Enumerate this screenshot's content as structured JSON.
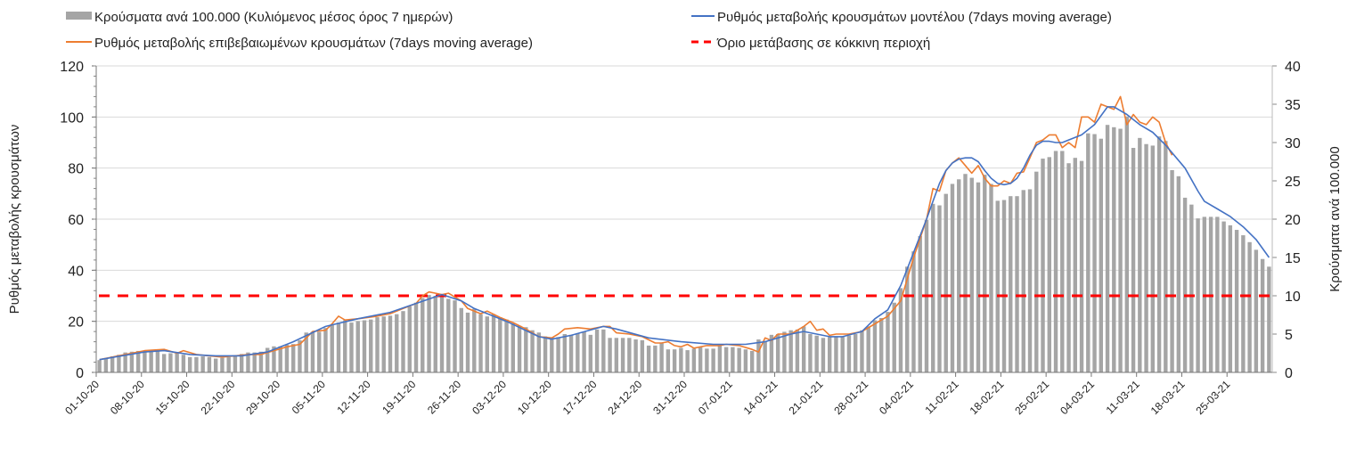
{
  "chart_data": {
    "type": "bar+line",
    "title": "",
    "ylabel_left": "Ρυθμός μεταβολής κρουσμάτων",
    "ylabel_right": "Κρούσματα ανά 100.000",
    "ylim_left": [
      0,
      120
    ],
    "ylim_right": [
      0,
      40
    ],
    "yticks_left": [
      0,
      20,
      40,
      60,
      80,
      100,
      120
    ],
    "yticks_right": [
      0,
      5,
      10,
      15,
      20,
      25,
      30,
      35,
      40
    ],
    "grid": true,
    "legend_position": "top",
    "x_tick_labels": [
      "01-10-20",
      "08-10-20",
      "15-10-20",
      "22-10-20",
      "29-10-20",
      "05-11-20",
      "12-11-20",
      "19-11-20",
      "26-11-20",
      "03-12-20",
      "10-12-20",
      "17-12-20",
      "24-12-20",
      "31-12-20",
      "07-01-21",
      "14-01-21",
      "21-01-21",
      "28-01-21",
      "04-02-21",
      "11-02-21",
      "18-02-21",
      "25-02-21",
      "04-03-21",
      "11-03-21",
      "18-03-21",
      "25-03-21"
    ],
    "x_tick_step_days": 7,
    "series": [
      {
        "name": "Κρούσματα ανά 100.000 (Κυλιόμενος μέσος όρος 7 ημερών)",
        "kind": "bar",
        "axis": "right",
        "color": "#a5a5a5",
        "values": [
          1.6,
          1.8,
          2.1,
          2.3,
          2.6,
          2.7,
          2.8,
          2.8,
          2.9,
          2.8,
          2.4,
          2.5,
          2.6,
          2.3,
          2.0,
          2.0,
          2.1,
          2.0,
          1.8,
          1.9,
          2.0,
          2.2,
          2.4,
          2.6,
          2.6,
          2.7,
          3.2,
          3.4,
          3.4,
          3.6,
          3.7,
          4.2,
          5.2,
          5.3,
          5.3,
          5.8,
          6.2,
          6.5,
          6.8,
          6.5,
          6.7,
          6.8,
          6.9,
          7.2,
          7.3,
          7.4,
          7.6,
          8.0,
          8.6,
          9.1,
          9.7,
          10.1,
          10.0,
          10.1,
          9.6,
          9.4,
          8.4,
          7.8,
          8.3,
          7.6,
          7.3,
          7.6,
          7.2,
          6.9,
          6.4,
          6.1,
          5.9,
          5.5,
          5.2,
          4.7,
          4.6,
          4.6,
          5.0,
          4.9,
          5.1,
          5.3,
          4.9,
          5.6,
          5.6,
          4.5,
          4.5,
          4.5,
          4.5,
          4.3,
          4.2,
          3.5,
          3.5,
          3.8,
          3.0,
          3.0,
          3.2,
          2.9,
          3.1,
          3.3,
          3.1,
          3.1,
          3.6,
          3.3,
          3.3,
          3.2,
          3.0,
          2.8,
          4.3,
          4.1,
          4.9,
          5.0,
          5.3,
          5.5,
          5.6,
          6.0,
          5.0,
          4.8,
          4.5,
          4.6,
          4.6,
          4.7,
          4.8,
          5.0,
          5.5,
          6.0,
          6.8,
          7.1,
          7.9,
          9.1,
          11.0,
          13.8,
          15.8,
          17.8,
          19.9,
          22.0,
          21.8,
          23.3,
          24.6,
          25.2,
          25.9,
          25.4,
          24.8,
          25.8,
          24.6,
          22.4,
          22.5,
          23.0,
          23.0,
          23.8,
          23.9,
          26.2,
          27.9,
          28.1,
          28.9,
          28.9,
          27.3,
          28.0,
          27.6,
          31.2,
          31.1,
          30.5,
          32.3,
          32.0,
          31.8,
          33.4,
          29.3,
          30.6,
          29.8,
          29.6,
          30.8,
          30.2,
          26.4,
          25.6,
          22.8,
          21.9,
          20.1,
          20.3,
          20.3,
          20.3,
          19.7,
          19.2,
          18.6,
          17.9,
          17.0,
          16.0,
          14.8,
          13.8
        ]
      },
      {
        "name": "Ρυθμός μεταβολής κρουσμάτων μοντέλου (7days moving average)",
        "kind": "line",
        "axis": "left",
        "color": "#4472c4",
        "points_day_value": [
          [
            0,
            5
          ],
          [
            7,
            8
          ],
          [
            10,
            8.5
          ],
          [
            14,
            7
          ],
          [
            18,
            6.5
          ],
          [
            22,
            6.5
          ],
          [
            26,
            8
          ],
          [
            30,
            12
          ],
          [
            35,
            18
          ],
          [
            40,
            21
          ],
          [
            45,
            23.5
          ],
          [
            49,
            27
          ],
          [
            53,
            30.5
          ],
          [
            56,
            28
          ],
          [
            58,
            25
          ],
          [
            63,
            20
          ],
          [
            68,
            14
          ],
          [
            70,
            13
          ],
          [
            73,
            14.5
          ],
          [
            78,
            18
          ],
          [
            80,
            17
          ],
          [
            85,
            13.5
          ],
          [
            90,
            12
          ],
          [
            95,
            11
          ],
          [
            100,
            11
          ],
          [
            103,
            12
          ],
          [
            107,
            15
          ],
          [
            109,
            16
          ],
          [
            113,
            14
          ],
          [
            115,
            14
          ],
          [
            118,
            16
          ],
          [
            120,
            21
          ],
          [
            122,
            24.5
          ],
          [
            124,
            34
          ],
          [
            126,
            47
          ],
          [
            128,
            60
          ],
          [
            129,
            67
          ],
          [
            130,
            74
          ],
          [
            131,
            79
          ],
          [
            132,
            82
          ],
          [
            133,
            83.5
          ],
          [
            134,
            84
          ],
          [
            135,
            84
          ],
          [
            136,
            82.5
          ],
          [
            137,
            79
          ],
          [
            138,
            76
          ],
          [
            139,
            74
          ],
          [
            140,
            73.5
          ],
          [
            141,
            74
          ],
          [
            142,
            76
          ],
          [
            143,
            80
          ],
          [
            144,
            85
          ],
          [
            145,
            89
          ],
          [
            146,
            90.5
          ],
          [
            147,
            90.5
          ],
          [
            148,
            90
          ],
          [
            149,
            90
          ],
          [
            150,
            91
          ],
          [
            152,
            93
          ],
          [
            154,
            97
          ],
          [
            156,
            104
          ],
          [
            157,
            104
          ],
          [
            159,
            101
          ],
          [
            161,
            97
          ],
          [
            163,
            94
          ],
          [
            165,
            89
          ],
          [
            168,
            80
          ],
          [
            170,
            71
          ],
          [
            171,
            67
          ],
          [
            173,
            64
          ],
          [
            175,
            61
          ],
          [
            177,
            57
          ],
          [
            179,
            52
          ],
          [
            181,
            45
          ]
        ]
      },
      {
        "name": "Ρυθμός μεταβολής επιβεβαιωμένων κρουσμάτων (7days moving average)",
        "kind": "line",
        "axis": "left",
        "color": "#ed7d31",
        "points_day_value": [
          [
            0,
            5
          ],
          [
            4,
            7
          ],
          [
            7,
            8.5
          ],
          [
            10,
            9
          ],
          [
            12,
            7.5
          ],
          [
            13,
            8.5
          ],
          [
            15,
            7
          ],
          [
            17,
            6.5
          ],
          [
            19,
            6
          ],
          [
            21,
            6.5
          ],
          [
            23,
            7
          ],
          [
            25,
            7
          ],
          [
            27,
            8.5
          ],
          [
            29,
            10
          ],
          [
            31,
            11
          ],
          [
            33,
            16
          ],
          [
            35,
            16.5
          ],
          [
            36,
            19
          ],
          [
            37,
            22
          ],
          [
            38,
            20.5
          ],
          [
            40,
            21
          ],
          [
            43,
            22
          ],
          [
            45,
            23
          ],
          [
            47,
            25
          ],
          [
            49,
            27
          ],
          [
            50,
            30
          ],
          [
            51,
            31.5
          ],
          [
            52,
            31
          ],
          [
            53,
            30.5
          ],
          [
            54,
            31
          ],
          [
            56,
            28
          ],
          [
            57,
            25
          ],
          [
            59,
            23
          ],
          [
            60,
            24
          ],
          [
            62,
            21.5
          ],
          [
            64,
            19.5
          ],
          [
            66,
            17
          ],
          [
            68,
            14
          ],
          [
            70,
            13.5
          ],
          [
            71,
            15
          ],
          [
            72,
            17
          ],
          [
            74,
            17.5
          ],
          [
            76,
            17
          ],
          [
            78,
            18
          ],
          [
            79,
            18
          ],
          [
            80,
            15.5
          ],
          [
            82,
            15
          ],
          [
            84,
            14
          ],
          [
            86,
            11.5
          ],
          [
            87,
            11.5
          ],
          [
            88,
            12
          ],
          [
            89,
            10.5
          ],
          [
            90,
            10
          ],
          [
            91,
            11
          ],
          [
            92,
            9.5
          ],
          [
            94,
            10.5
          ],
          [
            96,
            10.5
          ],
          [
            97,
            11
          ],
          [
            99,
            10.5
          ],
          [
            101,
            9
          ],
          [
            102,
            8
          ],
          [
            103,
            13.5
          ],
          [
            104,
            12.5
          ],
          [
            105,
            15
          ],
          [
            107,
            15
          ],
          [
            109,
            18
          ],
          [
            110,
            20
          ],
          [
            111,
            16.5
          ],
          [
            112,
            17
          ],
          [
            113,
            14.5
          ],
          [
            114,
            15
          ],
          [
            116,
            15
          ],
          [
            118,
            16
          ],
          [
            120,
            19
          ],
          [
            122,
            22
          ],
          [
            124,
            28
          ],
          [
            126,
            45
          ],
          [
            128,
            60
          ],
          [
            129,
            72
          ],
          [
            130,
            71
          ],
          [
            131,
            79
          ],
          [
            132,
            82
          ],
          [
            133,
            84
          ],
          [
            134,
            81
          ],
          [
            135,
            78
          ],
          [
            136,
            81
          ],
          [
            137,
            76
          ],
          [
            138,
            73
          ],
          [
            139,
            73
          ],
          [
            140,
            75
          ],
          [
            141,
            74
          ],
          [
            142,
            78
          ],
          [
            143,
            78.5
          ],
          [
            144,
            84
          ],
          [
            145,
            90
          ],
          [
            146,
            91
          ],
          [
            147,
            93
          ],
          [
            148,
            93
          ],
          [
            149,
            88
          ],
          [
            150,
            90
          ],
          [
            151,
            88
          ],
          [
            152,
            100
          ],
          [
            153,
            100
          ],
          [
            154,
            98
          ],
          [
            155,
            105
          ],
          [
            156,
            104
          ],
          [
            157,
            103
          ],
          [
            158,
            108
          ],
          [
            159,
            97
          ],
          [
            160,
            101
          ],
          [
            161,
            98
          ],
          [
            162,
            97
          ],
          [
            163,
            100
          ],
          [
            164,
            98
          ],
          [
            165,
            90
          ],
          [
            166,
            85
          ]
        ]
      },
      {
        "name": "Όριο μετάβασης σε κόκκινη περιοχή",
        "kind": "hline-dashed",
        "axis": "left",
        "color": "#ff0000",
        "value": 30
      }
    ]
  }
}
